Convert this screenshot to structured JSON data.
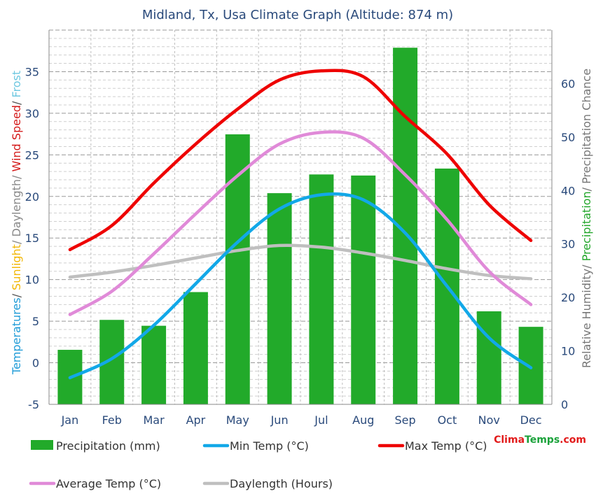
{
  "chart_data": {
    "type": "bar+line",
    "title": "Midland, Tx, Usa Climate Graph (Altitude: 874 m)",
    "categories": [
      "Jan",
      "Feb",
      "Mar",
      "Apr",
      "May",
      "Jun",
      "Jul",
      "Aug",
      "Sep",
      "Oct",
      "Nov",
      "Dec"
    ],
    "left_axis": {
      "ylim": [
        -5,
        40
      ],
      "ticks": [
        -5,
        0,
        5,
        10,
        15,
        20,
        25,
        30,
        35
      ],
      "label_parts": [
        {
          "text": "Temperatures",
          "color": "#1e9bd7"
        },
        {
          "text": "/ ",
          "color": "#555555"
        },
        {
          "text": "Sunlight",
          "color": "#f2b705"
        },
        {
          "text": "/ Daylength/ ",
          "color": "#888888"
        },
        {
          "text": "Wind Speed",
          "color": "#d41a1a"
        },
        {
          "text": "/ ",
          "color": "#555555"
        },
        {
          "text": "Frost",
          "color": "#6cc7e0"
        }
      ]
    },
    "right_axis": {
      "ylim": [
        0,
        70
      ],
      "ticks": [
        0,
        10,
        20,
        30,
        40,
        50,
        60
      ],
      "label_parts": [
        {
          "text": "Relative Humidity/ ",
          "color": "#777777"
        },
        {
          "text": "Precipitation",
          "color": "#22a62a"
        },
        {
          "text": "/ Precipitation Chance",
          "color": "#777777"
        }
      ]
    },
    "series": [
      {
        "name": "Precipitation (mm)",
        "type": "bar",
        "axis": "right",
        "color": "#22aa2a",
        "values": [
          10.2,
          15.8,
          14.7,
          21.0,
          50.5,
          39.5,
          43.0,
          42.8,
          66.7,
          44.1,
          17.4,
          14.5
        ]
      },
      {
        "name": "Min Temp (°C)",
        "type": "line",
        "axis": "left",
        "color": "#12a8e8",
        "values": [
          -1.8,
          0.5,
          4.5,
          9.5,
          14.5,
          18.5,
          20.2,
          19.6,
          15.6,
          9.2,
          3.0,
          -0.6
        ]
      },
      {
        "name": "Max Temp (°C)",
        "type": "line",
        "axis": "left",
        "color": "#ee0000",
        "values": [
          13.6,
          16.5,
          21.6,
          26.3,
          30.5,
          34.0,
          35.1,
          34.4,
          29.6,
          25.1,
          19.0,
          14.7
        ]
      },
      {
        "name": "Average Temp (°C)",
        "type": "line",
        "axis": "left",
        "color": "#e08ad8",
        "values": [
          5.8,
          8.6,
          13.1,
          17.9,
          22.5,
          26.3,
          27.7,
          27.0,
          22.6,
          17.2,
          11.0,
          7.0
        ]
      },
      {
        "name": "Daylength (Hours)",
        "type": "line",
        "axis": "left",
        "color": "#bfbfbf",
        "values": [
          10.3,
          10.9,
          11.7,
          12.6,
          13.5,
          14.1,
          13.9,
          13.2,
          12.3,
          11.3,
          10.5,
          10.1
        ]
      }
    ],
    "legend": [
      {
        "label": "Precipitation (mm)",
        "kind": "bar",
        "color": "#22aa2a"
      },
      {
        "label": "Min Temp (°C)",
        "kind": "line",
        "color": "#12a8e8"
      },
      {
        "label": "Max Temp (°C)",
        "kind": "line",
        "color": "#ee0000"
      },
      {
        "label": "Average Temp (°C)",
        "kind": "line",
        "color": "#e08ad8"
      },
      {
        "label": "Daylength (Hours)",
        "kind": "line",
        "color": "#bfbfbf"
      }
    ],
    "legend_placement": "bottom",
    "grid": true,
    "brand": {
      "part1": "Clima",
      "part2": "Temps",
      "part3": ".com",
      "color1": "#e21b1b",
      "color2": "#1aa23a",
      "color3": "#e21b1b"
    }
  }
}
